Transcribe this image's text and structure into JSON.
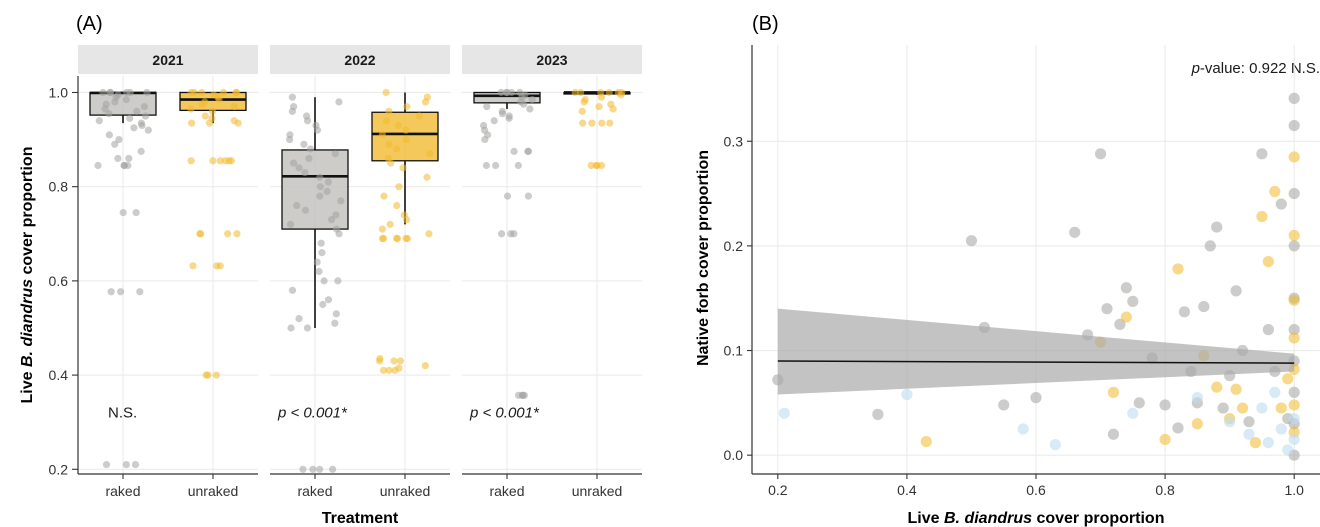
{
  "panel_a_label": "(A)",
  "panel_b_label": "(B)",
  "colors": {
    "raked": "#a3a3a0",
    "unraked": "#f2b92c",
    "box_raked": "#c4c3bf",
    "box_unraked": "#f2be3d",
    "third_series": "#bcdcee",
    "ribbon": "#a9a9a9"
  },
  "chart_data": [
    {
      "type": "box",
      "ylabel_parts": [
        "Live ",
        "B. diandrus",
        " cover proportion"
      ],
      "xlabel": "Treatment",
      "ylim": [
        0.19,
        1.035
      ],
      "yticks": [
        "0.2",
        "0.4",
        "0.6",
        "0.8",
        "1.0"
      ],
      "categories": [
        "raked",
        "unraked"
      ],
      "facets": [
        {
          "title": "2021",
          "annotation": "N.S.",
          "boxes": [
            {
              "group": "raked",
              "q1": 0.952,
              "median": 0.999,
              "q3": 1.0,
              "whisker_low": 0.935,
              "whisker_high": 1.0,
              "points": [
                0.21,
                0.21,
                0.21,
                0.577,
                0.577,
                0.577,
                0.745,
                0.745,
                0.845,
                0.845,
                0.845,
                0.845,
                0.86,
                0.86,
                0.875,
                0.89,
                0.9,
                0.91,
                0.92,
                0.925,
                0.93,
                0.935,
                0.94,
                0.945,
                0.95,
                0.955,
                0.96,
                0.965,
                0.97,
                0.975,
                0.98,
                0.985,
                0.99,
                0.995,
                1.0,
                1.0,
                1.0,
                1.0,
                1.0,
                1.0
              ]
            },
            {
              "group": "unraked",
              "q1": 0.962,
              "median": 0.985,
              "q3": 1.0,
              "whisker_low": 0.935,
              "whisker_high": 1.0,
              "points": [
                0.4,
                0.4,
                0.4,
                0.632,
                0.632,
                0.632,
                0.7,
                0.7,
                0.7,
                0.7,
                0.855,
                0.855,
                0.855,
                0.855,
                0.855,
                0.855,
                0.935,
                0.935,
                0.935,
                0.94,
                0.945,
                0.95,
                0.96,
                0.965,
                0.97,
                0.975,
                0.98,
                0.985,
                0.99,
                0.995,
                1.0,
                1.0,
                1.0,
                1.0,
                1.0,
                1.0
              ]
            }
          ]
        },
        {
          "title": "2022",
          "annotation": "p < 0.001*",
          "boxes": [
            {
              "group": "raked",
              "q1": 0.71,
              "median": 0.822,
              "q3": 0.878,
              "whisker_low": 0.5,
              "whisker_high": 0.99,
              "points": [
                0.2,
                0.2,
                0.2,
                0.2,
                0.5,
                0.5,
                0.51,
                0.52,
                0.53,
                0.55,
                0.56,
                0.58,
                0.6,
                0.6,
                0.62,
                0.64,
                0.66,
                0.68,
                0.7,
                0.71,
                0.72,
                0.73,
                0.74,
                0.75,
                0.76,
                0.77,
                0.78,
                0.79,
                0.8,
                0.81,
                0.82,
                0.83,
                0.84,
                0.85,
                0.86,
                0.87,
                0.88,
                0.89,
                0.9,
                0.91,
                0.92,
                0.93,
                0.94,
                0.95,
                0.96,
                0.97,
                0.98,
                0.99
              ]
            },
            {
              "group": "unraked",
              "q1": 0.855,
              "median": 0.912,
              "q3": 0.958,
              "whisker_low": 0.72,
              "whisker_high": 1.0,
              "points": [
                0.41,
                0.41,
                0.41,
                0.415,
                0.42,
                0.43,
                0.43,
                0.43,
                0.435,
                0.69,
                0.69,
                0.69,
                0.69,
                0.69,
                0.69,
                0.7,
                0.71,
                0.72,
                0.73,
                0.74,
                0.76,
                0.78,
                0.8,
                0.82,
                0.84,
                0.85,
                0.86,
                0.87,
                0.88,
                0.89,
                0.9,
                0.91,
                0.92,
                0.93,
                0.94,
                0.95,
                0.96,
                0.97,
                0.98,
                0.99,
                1.0
              ]
            }
          ]
        },
        {
          "title": "2023",
          "annotation": "p < 0.001*",
          "boxes": [
            {
              "group": "raked",
              "q1": 0.978,
              "median": 0.993,
              "q3": 1.0,
              "whisker_low": 0.965,
              "whisker_high": 1.0,
              "points": [
                0.357,
                0.357,
                0.357,
                0.357,
                0.7,
                0.7,
                0.7,
                0.78,
                0.78,
                0.845,
                0.845,
                0.845,
                0.875,
                0.875,
                0.875,
                0.9,
                0.91,
                0.92,
                0.93,
                0.94,
                0.945,
                0.95,
                0.955,
                0.96,
                0.965,
                0.97,
                0.975,
                0.98,
                0.985,
                0.99,
                0.995,
                1.0,
                1.0,
                1.0,
                1.0,
                1.0
              ]
            },
            {
              "group": "unraked",
              "q1": 0.998,
              "median": 1.0,
              "q3": 1.0,
              "whisker_low": 0.995,
              "whisker_high": 1.0,
              "points": [
                0.845,
                0.845,
                0.845,
                0.845,
                0.935,
                0.935,
                0.935,
                0.935,
                0.96,
                0.965,
                0.97,
                0.975,
                0.98,
                0.985,
                0.99,
                0.995,
                1.0,
                1.0,
                1.0,
                1.0,
                1.0,
                1.0
              ]
            }
          ]
        }
      ]
    },
    {
      "type": "scatter",
      "xlabel_parts": [
        "Live ",
        "B. diandrus",
        " cover proportion"
      ],
      "ylabel": "Native forb cover proportion",
      "xlim": [
        0.16,
        1.04
      ],
      "ylim": [
        -0.018,
        0.392
      ],
      "xticks": [
        "0.2",
        "0.4",
        "0.6",
        "0.8",
        "1.0"
      ],
      "yticks": [
        "0.0",
        "0.1",
        "0.2",
        "0.3"
      ],
      "annotation_parts": [
        "p",
        "-value: 0.922 N.S."
      ],
      "fit": {
        "x": [
          0.2,
          1.0
        ],
        "y": [
          0.09,
          0.088
        ],
        "ci_low": [
          0.058,
          0.08
        ],
        "ci_high": [
          0.14,
          0.097
        ]
      },
      "series": [
        {
          "color_key": "raked",
          "points": [
            [
              0.2,
              0.072
            ],
            [
              0.355,
              0.039
            ],
            [
              0.5,
              0.205
            ],
            [
              0.52,
              0.122
            ],
            [
              0.55,
              0.048
            ],
            [
              0.6,
              0.055
            ],
            [
              0.66,
              0.213
            ],
            [
              0.68,
              0.115
            ],
            [
              0.7,
              0.288
            ],
            [
              0.71,
              0.14
            ],
            [
              0.72,
              0.02
            ],
            [
              0.73,
              0.125
            ],
            [
              0.74,
              0.16
            ],
            [
              0.75,
              0.147
            ],
            [
              0.76,
              0.05
            ],
            [
              0.78,
              0.093
            ],
            [
              0.8,
              0.048
            ],
            [
              0.82,
              0.026
            ],
            [
              0.83,
              0.137
            ],
            [
              0.84,
              0.08
            ],
            [
              0.85,
              0.05
            ],
            [
              0.86,
              0.142
            ],
            [
              0.87,
              0.2
            ],
            [
              0.88,
              0.218
            ],
            [
              0.89,
              0.045
            ],
            [
              0.9,
              0.076
            ],
            [
              0.91,
              0.157
            ],
            [
              0.92,
              0.1
            ],
            [
              0.93,
              0.032
            ],
            [
              0.95,
              0.288
            ],
            [
              0.96,
              0.12
            ],
            [
              0.97,
              0.08
            ],
            [
              0.98,
              0.24
            ],
            [
              0.99,
              0.035
            ],
            [
              1.0,
              0.341
            ],
            [
              1.0,
              0.315
            ],
            [
              1.0,
              0.25
            ],
            [
              1.0,
              0.2
            ],
            [
              1.0,
              0.15
            ],
            [
              1.0,
              0.12
            ],
            [
              1.0,
              0.09
            ],
            [
              1.0,
              0.06
            ],
            [
              1.0,
              0.03
            ],
            [
              1.0,
              0.0
            ]
          ]
        },
        {
          "color_key": "unraked",
          "points": [
            [
              0.43,
              0.013
            ],
            [
              0.7,
              0.108
            ],
            [
              0.72,
              0.06
            ],
            [
              0.74,
              0.132
            ],
            [
              0.8,
              0.015
            ],
            [
              0.82,
              0.178
            ],
            [
              0.85,
              0.03
            ],
            [
              0.86,
              0.095
            ],
            [
              0.88,
              0.065
            ],
            [
              0.9,
              0.035
            ],
            [
              0.91,
              0.063
            ],
            [
              0.92,
              0.045
            ],
            [
              0.94,
              0.012
            ],
            [
              0.95,
              0.228
            ],
            [
              0.96,
              0.185
            ],
            [
              0.97,
              0.252
            ],
            [
              0.98,
              0.045
            ],
            [
              0.99,
              0.073
            ],
            [
              1.0,
              0.285
            ],
            [
              1.0,
              0.21
            ],
            [
              1.0,
              0.148
            ],
            [
              1.0,
              0.112
            ],
            [
              1.0,
              0.082
            ],
            [
              1.0,
              0.048
            ],
            [
              1.0,
              0.022
            ]
          ]
        },
        {
          "color_key": "third_series",
          "points": [
            [
              0.21,
              0.04
            ],
            [
              0.4,
              0.058
            ],
            [
              0.58,
              0.025
            ],
            [
              0.63,
              0.01
            ],
            [
              0.75,
              0.04
            ],
            [
              0.85,
              0.055
            ],
            [
              0.9,
              0.032
            ],
            [
              0.93,
              0.02
            ],
            [
              0.95,
              0.045
            ],
            [
              0.96,
              0.012
            ],
            [
              0.97,
              0.06
            ],
            [
              0.98,
              0.025
            ],
            [
              0.99,
              0.005
            ],
            [
              1.0,
              0.015
            ],
            [
              1.0,
              0.035
            ]
          ]
        }
      ]
    }
  ]
}
